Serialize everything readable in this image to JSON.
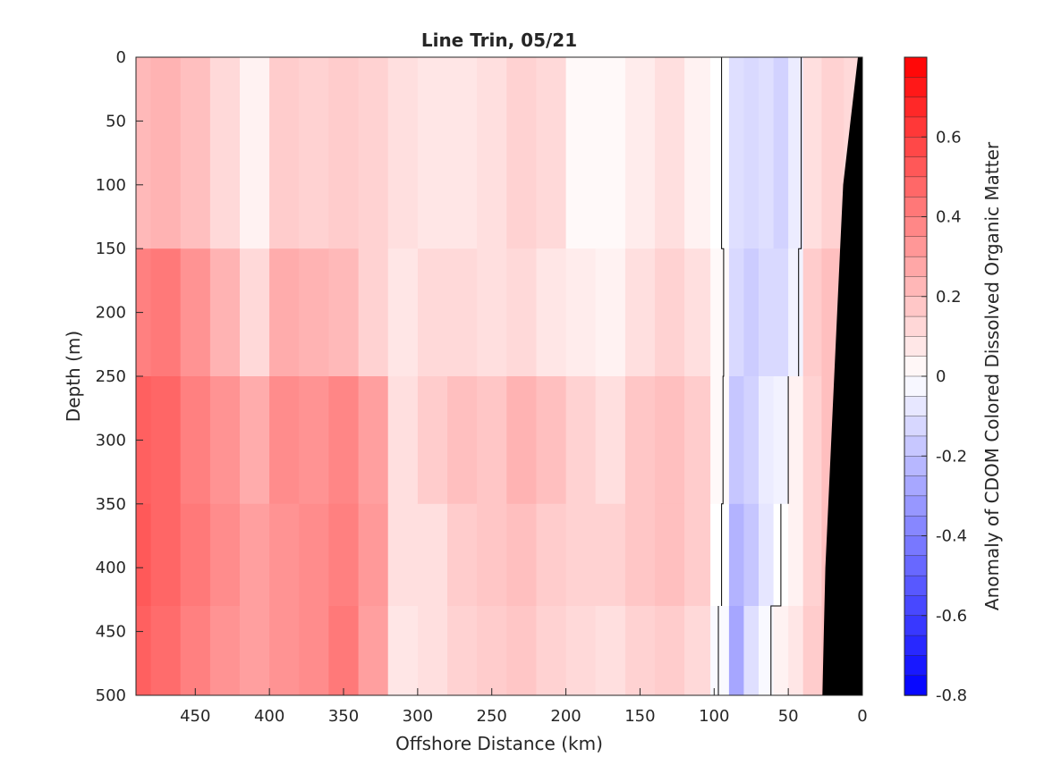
{
  "chart_data": {
    "type": "heatmap",
    "title": "Line Trin, 05/21",
    "xlabel": "Offshore Distance (km)",
    "ylabel": "Depth (m)",
    "colorbar_label": "Anomaly of CDOM Colored Dissolved Organic Matter",
    "xlim": [
      490,
      0
    ],
    "ylim": [
      0,
      500
    ],
    "x_reversed": true,
    "y_reversed": true,
    "clim": [
      -0.8,
      0.8
    ],
    "colormap": "blue-white-red",
    "contour_levels": [
      0
    ],
    "x_ticks": [
      450,
      400,
      350,
      300,
      250,
      200,
      150,
      100,
      50,
      0
    ],
    "x_tick_labels": [
      "450",
      "400",
      "350",
      "300",
      "250",
      "200",
      "150",
      "100",
      "50",
      "0"
    ],
    "y_ticks": [
      0,
      50,
      100,
      150,
      200,
      250,
      300,
      350,
      400,
      450,
      500
    ],
    "y_tick_labels": [
      "0",
      "50",
      "100",
      "150",
      "200",
      "250",
      "300",
      "350",
      "400",
      "450",
      "500"
    ],
    "colorbar_ticks": [
      0.6,
      0.4,
      0.2,
      0,
      -0.2,
      -0.4,
      -0.6,
      -0.8
    ],
    "colorbar_tick_labels": [
      "0.6",
      "0.4",
      "0.2",
      "0",
      "-0.2",
      "-0.4",
      "-0.6",
      "-0.8"
    ],
    "colors": {
      "positive": "#ff0000",
      "negative": "#0000ff",
      "zero": "#ffffff",
      "bathymetry": "#000000",
      "axis": "#262626"
    },
    "bathymetry_edge": [
      [
        0,
        3
      ],
      [
        50,
        8
      ],
      [
        100,
        13
      ],
      [
        150,
        15
      ],
      [
        200,
        17
      ],
      [
        250,
        19
      ],
      [
        300,
        21
      ],
      [
        350,
        23
      ],
      [
        400,
        25
      ],
      [
        450,
        26
      ],
      [
        500,
        27
      ]
    ],
    "field": {
      "x_nodes": [
        490,
        470,
        450,
        430,
        410,
        390,
        370,
        350,
        330,
        310,
        290,
        270,
        250,
        230,
        210,
        190,
        170,
        150,
        130,
        110,
        95,
        85,
        75,
        65,
        55,
        45,
        35,
        20,
        5
      ],
      "depth_bands": [
        {
          "depth_range": [
            0,
            150
          ],
          "values": [
            0.22,
            0.24,
            0.2,
            0.12,
            0.04,
            0.16,
            0.14,
            0.16,
            0.14,
            0.1,
            0.08,
            0.08,
            0.1,
            0.14,
            0.12,
            0.02,
            0.02,
            0.06,
            0.1,
            0.04,
            0.0,
            -0.1,
            -0.12,
            -0.1,
            -0.14,
            -0.06,
            0.1,
            0.14,
            0.12
          ]
        },
        {
          "depth_range": [
            150,
            250
          ],
          "values": [
            0.4,
            0.42,
            0.34,
            0.24,
            0.12,
            0.26,
            0.24,
            0.22,
            0.14,
            0.08,
            0.12,
            0.12,
            0.1,
            0.12,
            0.08,
            0.06,
            0.04,
            0.1,
            0.14,
            0.1,
            0.02,
            -0.12,
            -0.16,
            -0.12,
            -0.12,
            -0.04,
            0.16,
            0.2,
            0.18
          ]
        },
        {
          "depth_range": [
            250,
            350
          ],
          "values": [
            0.5,
            0.48,
            0.4,
            0.34,
            0.26,
            0.36,
            0.34,
            0.38,
            0.3,
            0.1,
            0.16,
            0.2,
            0.18,
            0.24,
            0.2,
            0.14,
            0.1,
            0.18,
            0.2,
            0.16,
            0.02,
            -0.18,
            -0.14,
            -0.06,
            -0.04,
            0.04,
            0.14,
            0.2,
            0.2
          ]
        },
        {
          "depth_range": [
            350,
            430
          ],
          "values": [
            0.52,
            0.48,
            0.42,
            0.36,
            0.3,
            0.34,
            0.36,
            0.4,
            0.32,
            0.1,
            0.1,
            0.16,
            0.18,
            0.2,
            0.16,
            0.14,
            0.14,
            0.18,
            0.2,
            0.16,
            0.0,
            -0.24,
            -0.18,
            -0.08,
            0.0,
            0.04,
            0.14,
            0.2,
            0.2
          ]
        },
        {
          "depth_range": [
            430,
            500
          ],
          "values": [
            0.5,
            0.46,
            0.4,
            0.34,
            0.3,
            0.34,
            0.36,
            0.42,
            0.3,
            0.08,
            0.1,
            0.14,
            0.16,
            0.18,
            0.14,
            0.12,
            0.1,
            0.14,
            0.16,
            0.12,
            -0.02,
            -0.28,
            -0.1,
            -0.02,
            0.04,
            0.08,
            0.16,
            0.2,
            0.2
          ]
        }
      ]
    }
  }
}
